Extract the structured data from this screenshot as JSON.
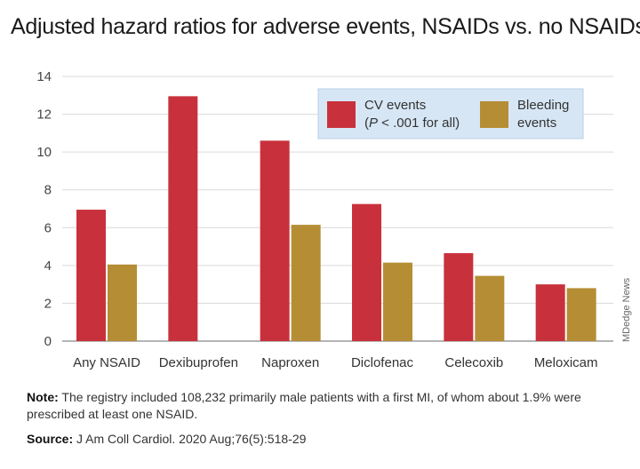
{
  "title": "Adjusted hazard ratios for adverse events, NSAIDs vs. no NSAIDs",
  "credit": "MDedge News",
  "legend": {
    "cv_line1": "CV events",
    "cv_line2_p": "P",
    "cv_line2_rest": " < .001 for all)",
    "cv_line2_open": "(",
    "bleed_line1": "Bleeding",
    "bleed_line2": "events"
  },
  "note": {
    "lead": "Note:",
    "text": " The registry included 108,232 primarily male patients with a first MI, of whom about 1.9% were prescribed at least one NSAID."
  },
  "source": {
    "lead": "Source:",
    "text": " J Am Coll Cardiol. 2020 Aug;76(5):518-29"
  },
  "colors": {
    "cv": "#c8313c",
    "bleeding": "#b58d34",
    "legend_bg": "#d6e6f4",
    "gridline": "#d9d9d9"
  },
  "chart_data": {
    "type": "bar",
    "categories": [
      "Any NSAID",
      "Dexibuprofen",
      "Naproxen",
      "Diclofenac",
      "Celecoxib",
      "Meloxicam"
    ],
    "series": [
      {
        "name": "CV events (P < .001 for all)",
        "values": [
          6.95,
          12.95,
          10.6,
          7.25,
          4.65,
          3.0
        ]
      },
      {
        "name": "Bleeding events",
        "values": [
          4.05,
          null,
          6.15,
          4.15,
          3.45,
          2.8
        ]
      }
    ],
    "yticks": [
      0,
      2,
      4,
      6,
      8,
      10,
      12,
      14
    ],
    "ylim": [
      0,
      14
    ],
    "grid": true,
    "legend_position": "top-right"
  }
}
